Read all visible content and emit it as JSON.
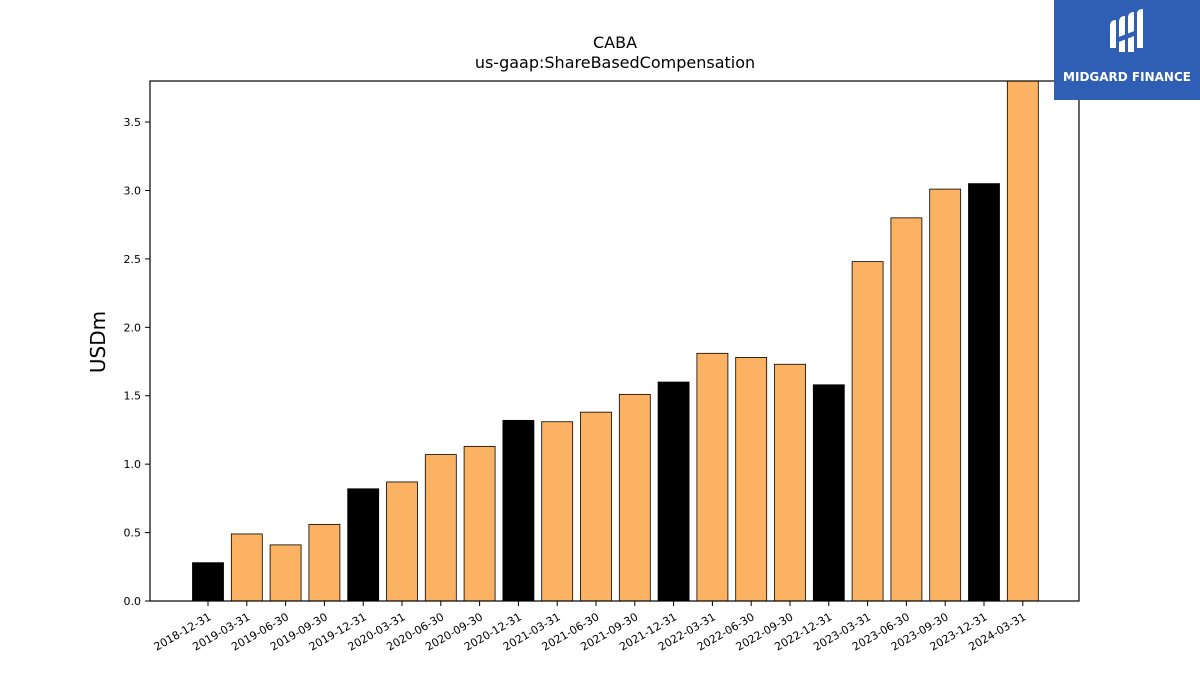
{
  "chart_data": {
    "type": "bar",
    "title": "CABA",
    "subtitle": "us-gaap:ShareBasedCompensation",
    "ylabel": "USDm",
    "xlabel": "",
    "ylim": [
      0,
      3.8
    ],
    "yticks": [
      "0.0",
      "0.5",
      "1.0",
      "1.5",
      "2.0",
      "2.5",
      "3.0",
      "3.5"
    ],
    "categories": [
      "2018-12-31",
      "2019-03-31",
      "2019-06-30",
      "2019-09-30",
      "2019-12-31",
      "2020-03-31",
      "2020-06-30",
      "2020-09-30",
      "2020-12-31",
      "2021-03-31",
      "2021-06-30",
      "2021-09-30",
      "2021-12-31",
      "2022-03-31",
      "2022-06-30",
      "2022-09-30",
      "2022-12-31",
      "2023-03-31",
      "2023-06-30",
      "2023-09-30",
      "2023-12-31",
      "2024-03-31"
    ],
    "values": [
      0.28,
      0.49,
      0.41,
      0.56,
      0.82,
      0.87,
      1.07,
      1.13,
      1.32,
      1.31,
      1.38,
      1.51,
      1.6,
      1.81,
      1.78,
      1.73,
      1.58,
      2.48,
      2.8,
      3.01,
      3.05,
      3.8
    ],
    "colors": {
      "quarter": "#fbb262",
      "year_end": "#000000"
    },
    "grid": false
  },
  "logo": {
    "text": "MIDGARD FINANCE",
    "background": "#2f5fb5"
  }
}
